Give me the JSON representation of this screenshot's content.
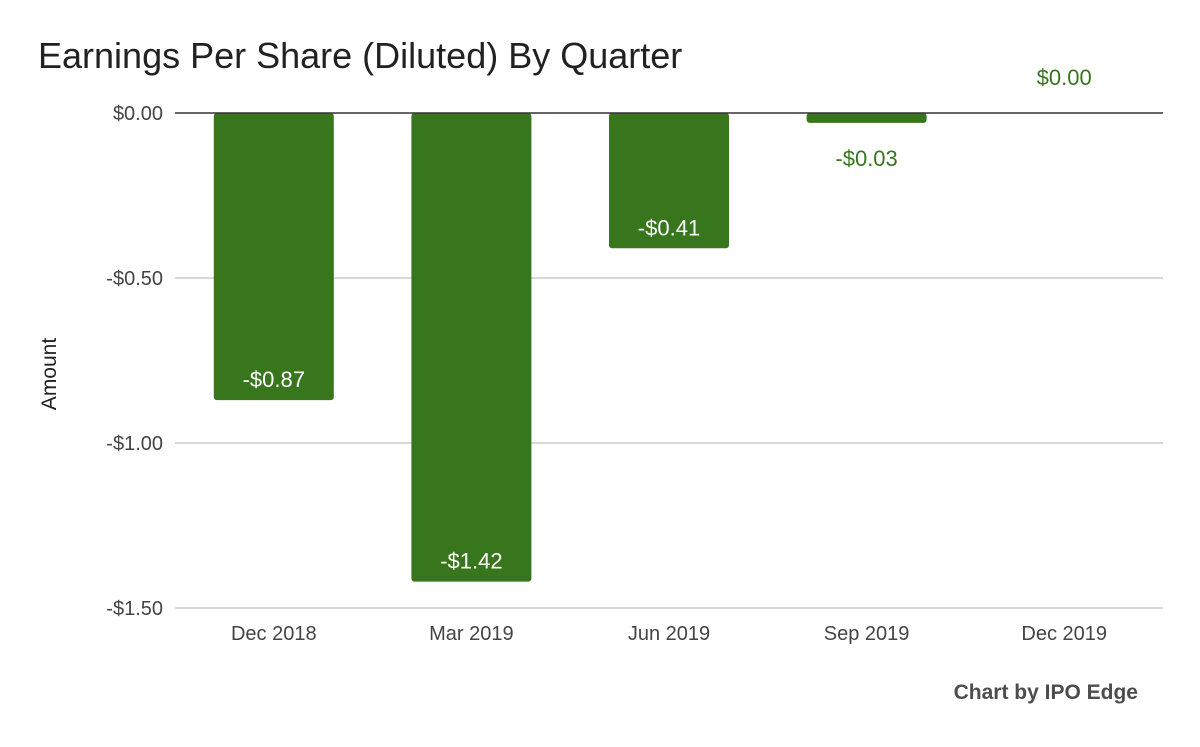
{
  "chart_data": {
    "type": "bar",
    "title": "Earnings Per Share (Diluted) By Quarter",
    "ylabel": "Amount",
    "xlabel": "",
    "categories": [
      "Dec 2018",
      "Mar 2019",
      "Jun 2019",
      "Sep 2019",
      "Dec 2019"
    ],
    "values": [
      -0.87,
      -1.42,
      -0.41,
      -0.03,
      0.0
    ],
    "data_labels": [
      "-$0.87",
      "-$1.42",
      "-$0.41",
      "-$0.03",
      "$0.00"
    ],
    "ylim": [
      -1.5,
      0
    ],
    "yticks": [
      0,
      -0.5,
      -1.0,
      -1.5
    ],
    "ytick_labels": [
      "$0.00",
      "-$0.50",
      "-$1.00",
      "-$1.50"
    ],
    "grid": true,
    "legend": false,
    "bar_color": "#38761d",
    "credit": "Chart by IPO Edge"
  }
}
